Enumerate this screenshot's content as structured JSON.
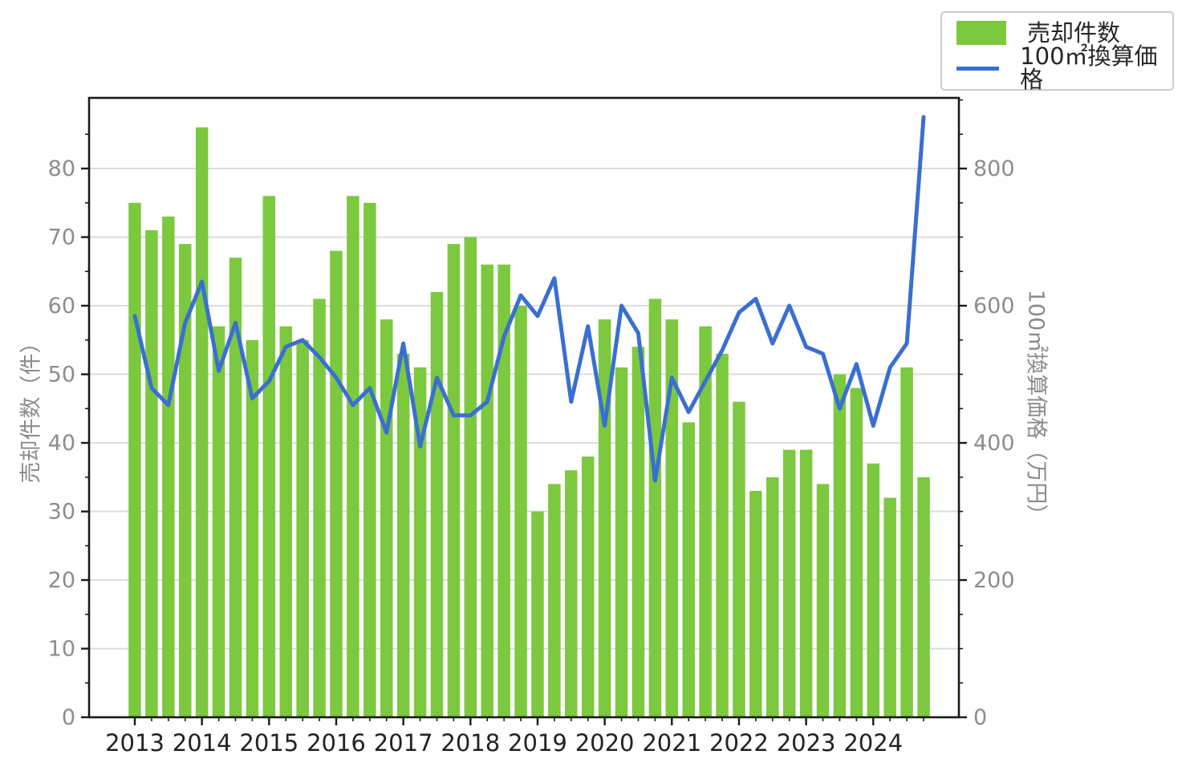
{
  "legend": {
    "items": [
      {
        "label": "売却件数",
        "swatch": "bar"
      },
      {
        "label": "100㎡換算価格",
        "swatch": "line"
      }
    ]
  },
  "axes": {
    "left": {
      "title": "売却件数（件）"
    },
    "right": {
      "title": "100㎡換算価格（万円）"
    }
  },
  "colors": {
    "bar": "#7cc83e",
    "line": "#3a6fd1",
    "grid": "#d9d9d9",
    "spine": "#1a1a1a",
    "ytick_label": "#8c8c8c",
    "xtick_label": "#222222",
    "background": "#ffffff"
  },
  "chart_data": {
    "type": "bar+line",
    "title": "",
    "x_quarters": [
      "2013Q1",
      "2013Q2",
      "2013Q3",
      "2013Q4",
      "2014Q1",
      "2014Q2",
      "2014Q3",
      "2014Q4",
      "2015Q1",
      "2015Q2",
      "2015Q3",
      "2015Q4",
      "2016Q1",
      "2016Q2",
      "2016Q3",
      "2016Q4",
      "2017Q1",
      "2017Q2",
      "2017Q3",
      "2017Q4",
      "2018Q1",
      "2018Q2",
      "2018Q3",
      "2018Q4",
      "2019Q1",
      "2019Q2",
      "2019Q3",
      "2019Q4",
      "2020Q1",
      "2020Q2",
      "2020Q3",
      "2020Q4",
      "2021Q1",
      "2021Q2",
      "2021Q3",
      "2021Q4",
      "2022Q1",
      "2022Q2",
      "2022Q3",
      "2022Q4",
      "2023Q1",
      "2023Q2",
      "2023Q3",
      "2023Q4",
      "2024Q1",
      "2024Q2",
      "2024Q3",
      "2024Q4"
    ],
    "x_year_ticks": [
      2013,
      2014,
      2015,
      2016,
      2017,
      2018,
      2019,
      2020,
      2021,
      2022,
      2023,
      2024
    ],
    "series": [
      {
        "name": "売却件数",
        "type": "bar",
        "yaxis": "left",
        "values": [
          75,
          71,
          73,
          69,
          86,
          57,
          67,
          55,
          76,
          57,
          55,
          61,
          68,
          76,
          75,
          58,
          53,
          51,
          62,
          69,
          70,
          66,
          66,
          60,
          30,
          34,
          36,
          38,
          58,
          51,
          54,
          61,
          58,
          43,
          57,
          53,
          46,
          33,
          35,
          39,
          39,
          34,
          50,
          48,
          37,
          32,
          51,
          35
        ]
      },
      {
        "name": "100㎡換算価格",
        "type": "line",
        "yaxis": "right",
        "values": [
          585,
          480,
          455,
          575,
          635,
          505,
          575,
          465,
          490,
          540,
          550,
          525,
          495,
          455,
          480,
          415,
          545,
          395,
          495,
          440,
          440,
          460,
          555,
          615,
          585,
          640,
          460,
          570,
          425,
          600,
          560,
          345,
          495,
          445,
          490,
          535,
          590,
          610,
          545,
          600,
          540,
          530,
          450,
          515,
          425,
          510,
          545,
          875
        ]
      }
    ],
    "left_axis": {
      "label": "売却件数（件）",
      "ticks": [
        0,
        10,
        20,
        30,
        40,
        50,
        60,
        70,
        80
      ],
      "minor_step": 5,
      "range": [
        0,
        90.3
      ]
    },
    "right_axis": {
      "label": "100㎡換算価格（万円）",
      "ticks": [
        0,
        200,
        400,
        600,
        800
      ],
      "minor_step": 50,
      "range": [
        0,
        903
      ]
    },
    "grid": "horizontal gridlines at right-axis 200/400/600/800 (= left 20/40/60/80)",
    "legend_position": "top-right"
  }
}
